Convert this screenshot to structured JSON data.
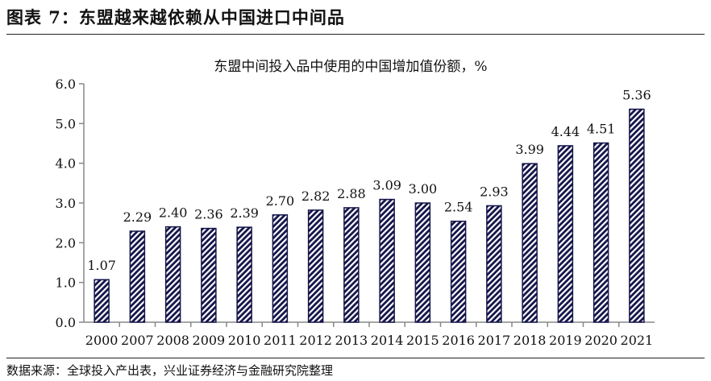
{
  "figure_title": "图表 7：东盟越来越依赖从中国进口中间品",
  "source": "数据来源：全球投入产出表，兴业证券经济与金融研究院整理",
  "chart_data": {
    "type": "bar",
    "title": "东盟中间投入品中使用的中国增加值份额，%",
    "categories": [
      "2000",
      "2007",
      "2008",
      "2009",
      "2010",
      "2011",
      "2012",
      "2013",
      "2014",
      "2015",
      "2016",
      "2017",
      "2018",
      "2019",
      "2020",
      "2021"
    ],
    "values": [
      1.07,
      2.29,
      2.4,
      2.36,
      2.39,
      2.7,
      2.82,
      2.88,
      3.09,
      3.0,
      2.54,
      2.93,
      3.99,
      4.44,
      4.51,
      5.36
    ],
    "value_labels": [
      "1.07",
      "2.29",
      "2.40",
      "2.36",
      "2.39",
      "2.70",
      "2.82",
      "2.88",
      "3.09",
      "3.00",
      "2.54",
      "2.93",
      "3.99",
      "4.44",
      "4.51",
      "5.36"
    ],
    "ylim": [
      0,
      6
    ],
    "yticks": [
      "0.0",
      "1.0",
      "2.0",
      "3.0",
      "4.0",
      "5.0",
      "6.0"
    ],
    "xlabel": "",
    "ylabel": "",
    "grid": false,
    "bar_color": "#14144a"
  }
}
